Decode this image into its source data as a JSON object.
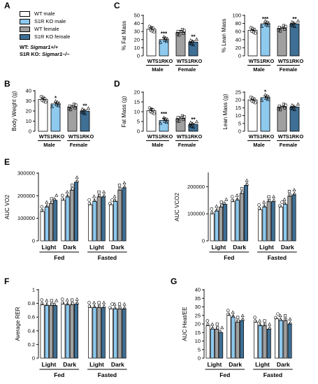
{
  "groups": [
    "WT male",
    "S1R KO male",
    "WT female",
    "S1R KO female"
  ],
  "colors": {
    "wt_male": "#ffffff",
    "ko_male": "#8ec9ee",
    "wt_female": "#a0a0a0",
    "ko_female": "#3f6f94",
    "stroke": "#000000"
  },
  "legend": {
    "items": [
      {
        "label": "WT male",
        "color": "#ffffff"
      },
      {
        "label": "S1R KO male",
        "color": "#8ec9ee"
      },
      {
        "label": "WT female",
        "color": "#a0a0a0"
      },
      {
        "label": "S1R KO female",
        "color": "#3f6f94"
      }
    ],
    "wt_prefix": "WT: ",
    "wt_genotype": "Sigmar1+/+",
    "ko_prefix": "S1R KO: ",
    "ko_genotype": "Sigmar1–/–"
  },
  "chart_data": [
    {
      "panel": "B",
      "type": "bar",
      "ylabel": "Body Weight (g)",
      "ylim": [
        0,
        40
      ],
      "yticks": [
        0,
        10,
        20,
        30,
        40
      ],
      "categories": [
        "WT",
        "S1RKO",
        "WT",
        "S1RKO"
      ],
      "groups": [
        "Male",
        "Female"
      ],
      "values": [
        31.5,
        27,
        24,
        20
      ],
      "errors": [
        1.5,
        1.5,
        1.5,
        1.0
      ],
      "sig": [
        "",
        "*",
        "",
        "**"
      ]
    },
    {
      "panel": "C",
      "type": "bar",
      "ylabel": "% Fat Mass",
      "ylim": [
        0,
        50
      ],
      "yticks": [
        0,
        10,
        20,
        30,
        40,
        50
      ],
      "categories": [
        "WT",
        "S1RKO",
        "WT",
        "S1RKO"
      ],
      "groups": [
        "Male",
        "Female"
      ],
      "values": [
        33,
        20,
        29,
        17
      ],
      "errors": [
        2.5,
        2.5,
        2.5,
        1.5
      ],
      "sig": [
        "",
        "***",
        "",
        "**"
      ]
    },
    {
      "panel": "C2",
      "type": "bar",
      "ylabel": "% Lean Mass",
      "ylim": [
        0,
        100
      ],
      "yticks": [
        0,
        20,
        40,
        60,
        80,
        100
      ],
      "categories": [
        "WT",
        "S1RKO",
        "WT",
        "S1RKO"
      ],
      "groups": [
        "Male",
        "Female"
      ],
      "values": [
        63,
        79,
        68,
        79
      ],
      "errors": [
        2,
        2,
        2.5,
        2
      ],
      "sig": [
        "",
        "***",
        "",
        "**"
      ]
    },
    {
      "panel": "D",
      "type": "bar",
      "ylabel": "Fat Mass (g)",
      "ylim": [
        0,
        20
      ],
      "yticks": [
        0,
        5,
        10,
        15,
        20
      ],
      "categories": [
        "WT",
        "S1RKO",
        "WT",
        "S1RKO"
      ],
      "groups": [
        "Male",
        "Female"
      ],
      "values": [
        10.5,
        5.5,
        6.5,
        3.5
      ],
      "errors": [
        1.2,
        1.2,
        0.8,
        0.5
      ],
      "sig": [
        "",
        "***",
        "",
        "**"
      ]
    },
    {
      "panel": "D2",
      "type": "bar",
      "ylabel": "Lean Mass (g)",
      "ylim": [
        0,
        25
      ],
      "yticks": [
        0,
        5,
        10,
        15,
        20,
        25
      ],
      "categories": [
        "WT",
        "S1RKO",
        "WT",
        "S1RKO"
      ],
      "groups": [
        "Male",
        "Female"
      ],
      "values": [
        20,
        21.5,
        15.5,
        15.5
      ],
      "errors": [
        0.5,
        1.0,
        0.5,
        0.5
      ],
      "sig": [
        "",
        "*",
        "",
        ""
      ]
    },
    {
      "panel": "E",
      "type": "bar",
      "ylabel": "AUC VO2",
      "ylim": [
        0,
        300000
      ],
      "yticks": [
        0,
        100000,
        200000,
        300000
      ],
      "categories": [
        "Light",
        "Dark",
        "Light",
        "Dark"
      ],
      "groups": [
        "Fed",
        "Fasted"
      ],
      "series_values": [
        [
          130000,
          150000,
          165000,
          180000
        ],
        [
          180000,
          195000,
          225000,
          260000
        ],
        [
          160000,
          175000,
          195000,
          195000
        ],
        [
          160000,
          175000,
          225000,
          235000
        ]
      ],
      "sig": []
    },
    {
      "panel": "E2",
      "type": "bar",
      "ylabel": "AUC VCO2",
      "ylim": [
        0,
        250000
      ],
      "yticks": [
        0,
        100000,
        200000
      ],
      "categories": [
        "Light",
        "Dark",
        "Light",
        "Dark"
      ],
      "groups": [
        "Fed",
        "Fasted"
      ],
      "series_values": [
        [
          100000,
          110000,
          125000,
          135000
        ],
        [
          145000,
          150000,
          175000,
          205000
        ],
        [
          115000,
          125000,
          145000,
          145000
        ],
        [
          125000,
          135000,
          165000,
          170000
        ]
      ],
      "sig": []
    },
    {
      "panel": "F",
      "type": "bar",
      "ylabel": "Average RER",
      "ylim": [
        0,
        1.0
      ],
      "yticks": [
        0.0,
        0.2,
        0.4,
        0.6,
        0.8,
        1.0
      ],
      "categories": [
        "Light",
        "Dark",
        "Light",
        "Dark"
      ],
      "groups": [
        "Fed",
        "Fasted"
      ],
      "series_values": [
        [
          0.78,
          0.77,
          0.77,
          0.77
        ],
        [
          0.79,
          0.78,
          0.78,
          0.79
        ],
        [
          0.74,
          0.74,
          0.74,
          0.74
        ],
        [
          0.72,
          0.72,
          0.72,
          0.72
        ]
      ],
      "sig": []
    },
    {
      "panel": "G",
      "type": "bar",
      "ylabel": "AUC Heat/EE",
      "ylim": [
        0,
        40
      ],
      "yticks": [
        0,
        5,
        10,
        15,
        20,
        25,
        30,
        35,
        40
      ],
      "categories": [
        "Light",
        "Dark",
        "Light",
        "Dark"
      ],
      "groups": [
        "Fed",
        "Fasted"
      ],
      "series_values": [
        [
          19,
          17,
          17,
          15
        ],
        [
          25,
          24,
          21,
          22
        ],
        [
          21,
          19,
          19,
          17
        ],
        [
          23,
          22,
          22,
          20
        ]
      ],
      "sig": []
    }
  ]
}
